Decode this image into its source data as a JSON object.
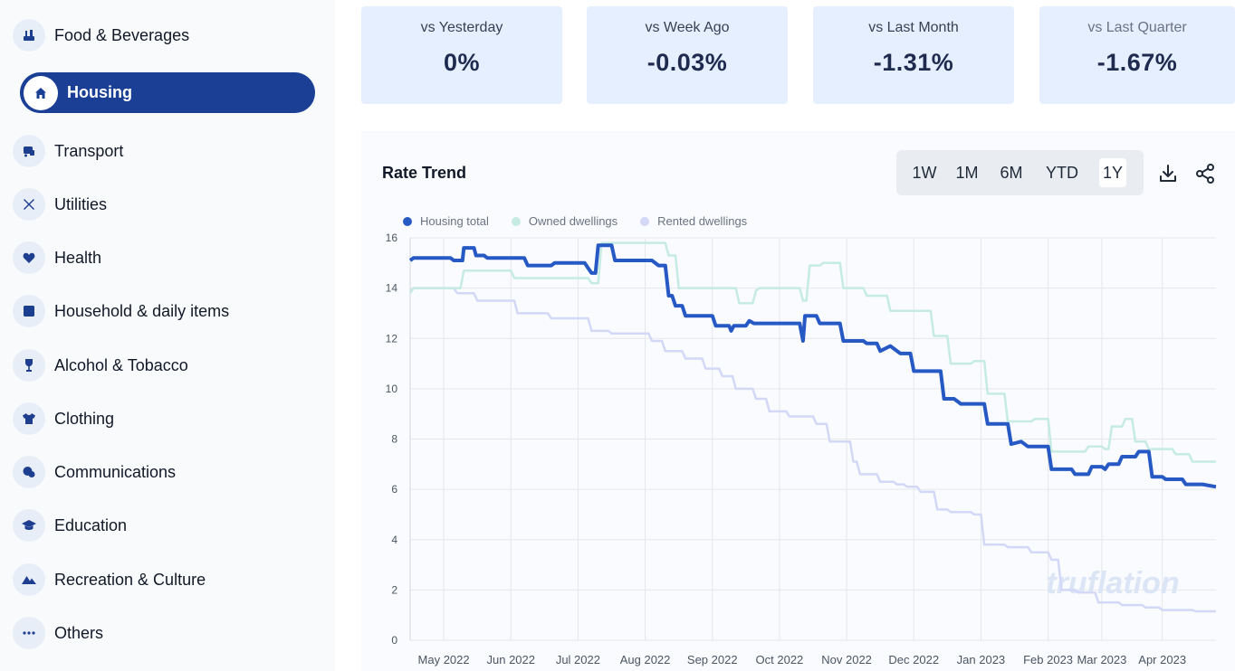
{
  "sidebar": {
    "items": [
      {
        "label": "Food & Beverages",
        "icon": "food-icon"
      },
      {
        "label": "Housing",
        "icon": "home-icon",
        "active": true
      },
      {
        "label": "Transport",
        "icon": "transport-icon"
      },
      {
        "label": "Utilities",
        "icon": "tools-icon"
      },
      {
        "label": "Health",
        "icon": "heart-icon"
      },
      {
        "label": "Household & daily items",
        "icon": "household-icon"
      },
      {
        "label": "Alcohol & Tobacco",
        "icon": "wine-icon"
      },
      {
        "label": "Clothing",
        "icon": "shirt-icon"
      },
      {
        "label": "Communications",
        "icon": "chat-icon"
      },
      {
        "label": "Education",
        "icon": "graduation-cap-icon"
      },
      {
        "label": "Recreation & Culture",
        "icon": "mountain-icon"
      },
      {
        "label": "Others",
        "icon": "more-icon"
      }
    ]
  },
  "stats": [
    {
      "label": "vs Yesterday",
      "value": "0%"
    },
    {
      "label": "vs Week Ago",
      "value": "-0.03%"
    },
    {
      "label": "vs Last Month",
      "value": "-1.31%"
    },
    {
      "label": "vs Last Quarter",
      "value": "-1.67%"
    }
  ],
  "chart_panel": {
    "title": "Rate Trend",
    "ranges": [
      "1W",
      "1M",
      "6M",
      "YTD",
      "1Y"
    ],
    "selected_range": "1Y",
    "watermark": "truflation"
  },
  "chart_data": {
    "type": "line",
    "title": "Rate Trend",
    "xlabel": "",
    "ylabel": "",
    "ylim": [
      0,
      16
    ],
    "yticks": [
      0,
      2,
      4,
      6,
      8,
      10,
      12,
      14,
      16
    ],
    "xlim": [
      0,
      12
    ],
    "xticks": [
      {
        "label": "May 2022",
        "pos": 0.5
      },
      {
        "label": "Jun 2022",
        "pos": 1.5
      },
      {
        "label": "Jul 2022",
        "pos": 2.5
      },
      {
        "label": "Aug 2022",
        "pos": 3.5
      },
      {
        "label": "Sep 2022",
        "pos": 4.5
      },
      {
        "label": "Oct 2022",
        "pos": 5.5
      },
      {
        "label": "Nov 2022",
        "pos": 6.5
      },
      {
        "label": "Dec 2022",
        "pos": 7.5
      },
      {
        "label": "Jan 2023",
        "pos": 8.5
      },
      {
        "label": "Feb 2023",
        "pos": 9.5
      },
      {
        "label": "Mar 2023",
        "pos": 10.3
      },
      {
        "label": "Apr 2023",
        "pos": 11.2
      }
    ],
    "grid": true,
    "legend": "top-left",
    "series": [
      {
        "name": "Housing total",
        "color": "#2659c4",
        "width": 4,
        "points": [
          [
            0,
            15.1
          ],
          [
            0.05,
            15.2
          ],
          [
            0.6,
            15.2
          ],
          [
            0.65,
            15.1
          ],
          [
            0.78,
            15.1
          ],
          [
            0.8,
            15.6
          ],
          [
            0.95,
            15.6
          ],
          [
            0.98,
            15.3
          ],
          [
            1.1,
            15.3
          ],
          [
            1.15,
            15.2
          ],
          [
            1.7,
            15.2
          ],
          [
            1.75,
            14.9
          ],
          [
            2.1,
            14.9
          ],
          [
            2.15,
            15.0
          ],
          [
            2.6,
            15.0
          ],
          [
            2.65,
            14.8
          ],
          [
            2.7,
            14.6
          ],
          [
            2.76,
            14.6
          ],
          [
            2.8,
            15.7
          ],
          [
            3.0,
            15.7
          ],
          [
            3.05,
            15.1
          ],
          [
            3.6,
            15.1
          ],
          [
            3.7,
            14.9
          ],
          [
            3.8,
            14.9
          ],
          [
            3.85,
            13.7
          ],
          [
            3.9,
            13.7
          ],
          [
            3.95,
            13.3
          ],
          [
            4.05,
            13.3
          ],
          [
            4.1,
            12.9
          ],
          [
            4.5,
            12.9
          ],
          [
            4.55,
            12.5
          ],
          [
            4.75,
            12.5
          ],
          [
            4.78,
            12.3
          ],
          [
            4.82,
            12.5
          ],
          [
            5.0,
            12.5
          ],
          [
            5.05,
            12.7
          ],
          [
            5.12,
            12.6
          ],
          [
            5.8,
            12.6
          ],
          [
            5.85,
            11.9
          ],
          [
            5.88,
            12.9
          ],
          [
            6.05,
            12.9
          ],
          [
            6.1,
            12.6
          ],
          [
            6.4,
            12.6
          ],
          [
            6.45,
            11.9
          ],
          [
            6.75,
            11.9
          ],
          [
            6.8,
            11.8
          ],
          [
            6.95,
            11.8
          ],
          [
            7.0,
            11.5
          ],
          [
            7.15,
            11.7
          ],
          [
            7.3,
            11.4
          ],
          [
            7.45,
            11.4
          ],
          [
            7.5,
            10.7
          ],
          [
            7.9,
            10.7
          ],
          [
            7.95,
            9.6
          ],
          [
            8.1,
            9.6
          ],
          [
            8.2,
            9.4
          ],
          [
            8.55,
            9.4
          ],
          [
            8.6,
            8.6
          ],
          [
            8.9,
            8.6
          ],
          [
            8.95,
            7.8
          ],
          [
            9.1,
            7.9
          ],
          [
            9.2,
            7.7
          ],
          [
            9.5,
            7.7
          ],
          [
            9.55,
            6.8
          ],
          [
            9.85,
            6.8
          ],
          [
            9.9,
            6.6
          ],
          [
            10.1,
            6.6
          ],
          [
            10.15,
            6.9
          ],
          [
            10.3,
            6.9
          ],
          [
            10.35,
            6.8
          ],
          [
            10.4,
            7.0
          ],
          [
            10.55,
            7.0
          ],
          [
            10.6,
            7.3
          ],
          [
            10.8,
            7.3
          ],
          [
            10.85,
            7.5
          ],
          [
            11.0,
            7.5
          ],
          [
            11.05,
            6.5
          ],
          [
            11.2,
            6.5
          ],
          [
            11.25,
            6.4
          ],
          [
            11.5,
            6.4
          ],
          [
            11.55,
            6.2
          ],
          [
            11.8,
            6.2
          ],
          [
            12.0,
            6.1
          ]
        ]
      },
      {
        "name": "Owned dwellings",
        "color": "#c5ebe2",
        "width": 2.5,
        "points": [
          [
            0,
            13.8
          ],
          [
            0.05,
            14.0
          ],
          [
            0.75,
            14.0
          ],
          [
            0.8,
            14.7
          ],
          [
            1.5,
            14.7
          ],
          [
            1.55,
            14.4
          ],
          [
            2.65,
            14.4
          ],
          [
            2.7,
            14.2
          ],
          [
            2.8,
            14.2
          ],
          [
            2.85,
            15.8
          ],
          [
            3.8,
            15.8
          ],
          [
            3.85,
            15.3
          ],
          [
            3.95,
            15.3
          ],
          [
            4.0,
            14.0
          ],
          [
            4.85,
            14.0
          ],
          [
            4.9,
            13.4
          ],
          [
            5.1,
            13.4
          ],
          [
            5.15,
            13.9
          ],
          [
            5.2,
            14.0
          ],
          [
            5.8,
            14.0
          ],
          [
            5.85,
            13.5
          ],
          [
            5.9,
            13.5
          ],
          [
            5.95,
            14.9
          ],
          [
            6.1,
            14.9
          ],
          [
            6.15,
            15.0
          ],
          [
            6.4,
            15.0
          ],
          [
            6.45,
            14.0
          ],
          [
            6.75,
            14.0
          ],
          [
            6.8,
            13.7
          ],
          [
            7.1,
            13.7
          ],
          [
            7.15,
            13.1
          ],
          [
            7.75,
            13.1
          ],
          [
            7.8,
            12.1
          ],
          [
            8.0,
            12.1
          ],
          [
            8.05,
            11.0
          ],
          [
            8.35,
            11.0
          ],
          [
            8.4,
            11.1
          ],
          [
            8.55,
            11.1
          ],
          [
            8.6,
            9.8
          ],
          [
            8.85,
            9.8
          ],
          [
            8.9,
            8.7
          ],
          [
            9.25,
            8.7
          ],
          [
            9.3,
            8.8
          ],
          [
            9.5,
            8.8
          ],
          [
            9.55,
            7.5
          ],
          [
            10.05,
            7.5
          ],
          [
            10.1,
            7.7
          ],
          [
            10.3,
            7.7
          ],
          [
            10.35,
            7.6
          ],
          [
            10.4,
            7.6
          ],
          [
            10.45,
            8.5
          ],
          [
            10.6,
            8.5
          ],
          [
            10.65,
            8.8
          ],
          [
            10.75,
            8.8
          ],
          [
            10.8,
            7.9
          ],
          [
            10.95,
            7.9
          ],
          [
            11.0,
            7.6
          ],
          [
            11.35,
            7.6
          ],
          [
            11.4,
            7.4
          ],
          [
            11.6,
            7.4
          ],
          [
            11.65,
            7.1
          ],
          [
            12.0,
            7.1
          ]
        ]
      },
      {
        "name": "Rented dwellings",
        "color": "#d3d8f7",
        "width": 2.5,
        "points": [
          [
            0,
            13.9
          ],
          [
            0.05,
            14.0
          ],
          [
            0.65,
            14.0
          ],
          [
            0.7,
            13.8
          ],
          [
            0.95,
            13.8
          ],
          [
            1.0,
            13.5
          ],
          [
            1.55,
            13.5
          ],
          [
            1.6,
            13.0
          ],
          [
            2.05,
            13.0
          ],
          [
            2.1,
            12.8
          ],
          [
            2.65,
            12.8
          ],
          [
            2.7,
            12.3
          ],
          [
            2.95,
            12.3
          ],
          [
            3.0,
            12.2
          ],
          [
            3.55,
            12.2
          ],
          [
            3.6,
            11.9
          ],
          [
            3.75,
            11.9
          ],
          [
            3.8,
            11.5
          ],
          [
            4.05,
            11.5
          ],
          [
            4.1,
            11.2
          ],
          [
            4.35,
            11.2
          ],
          [
            4.4,
            10.8
          ],
          [
            4.6,
            10.8
          ],
          [
            4.65,
            10.5
          ],
          [
            4.8,
            10.5
          ],
          [
            4.85,
            10.0
          ],
          [
            5.1,
            10.0
          ],
          [
            5.15,
            9.6
          ],
          [
            5.3,
            9.6
          ],
          [
            5.35,
            9.1
          ],
          [
            5.6,
            9.1
          ],
          [
            5.65,
            8.9
          ],
          [
            6.0,
            8.9
          ],
          [
            6.05,
            8.6
          ],
          [
            6.2,
            8.6
          ],
          [
            6.25,
            7.9
          ],
          [
            6.55,
            7.9
          ],
          [
            6.6,
            7.1
          ],
          [
            6.65,
            7.1
          ],
          [
            6.7,
            6.6
          ],
          [
            6.95,
            6.6
          ],
          [
            7.0,
            6.3
          ],
          [
            7.2,
            6.3
          ],
          [
            7.25,
            6.2
          ],
          [
            7.35,
            6.2
          ],
          [
            7.4,
            6.1
          ],
          [
            7.55,
            6.1
          ],
          [
            7.6,
            5.9
          ],
          [
            7.8,
            5.9
          ],
          [
            7.85,
            5.2
          ],
          [
            8.0,
            5.2
          ],
          [
            8.05,
            5.1
          ],
          [
            8.35,
            5.1
          ],
          [
            8.4,
            5.0
          ],
          [
            8.5,
            5.0
          ],
          [
            8.55,
            3.8
          ],
          [
            8.85,
            3.8
          ],
          [
            8.9,
            3.7
          ],
          [
            9.2,
            3.7
          ],
          [
            9.25,
            3.5
          ],
          [
            9.5,
            3.5
          ],
          [
            9.55,
            3.2
          ],
          [
            9.65,
            3.2
          ],
          [
            9.7,
            2.0
          ],
          [
            9.9,
            2.0
          ],
          [
            9.95,
            1.9
          ],
          [
            10.2,
            1.9
          ],
          [
            10.25,
            1.5
          ],
          [
            10.55,
            1.5
          ],
          [
            10.6,
            1.4
          ],
          [
            10.9,
            1.4
          ],
          [
            10.95,
            1.3
          ],
          [
            11.15,
            1.3
          ],
          [
            11.2,
            1.2
          ],
          [
            11.65,
            1.2
          ],
          [
            11.7,
            1.15
          ],
          [
            12.0,
            1.15
          ]
        ]
      }
    ]
  }
}
